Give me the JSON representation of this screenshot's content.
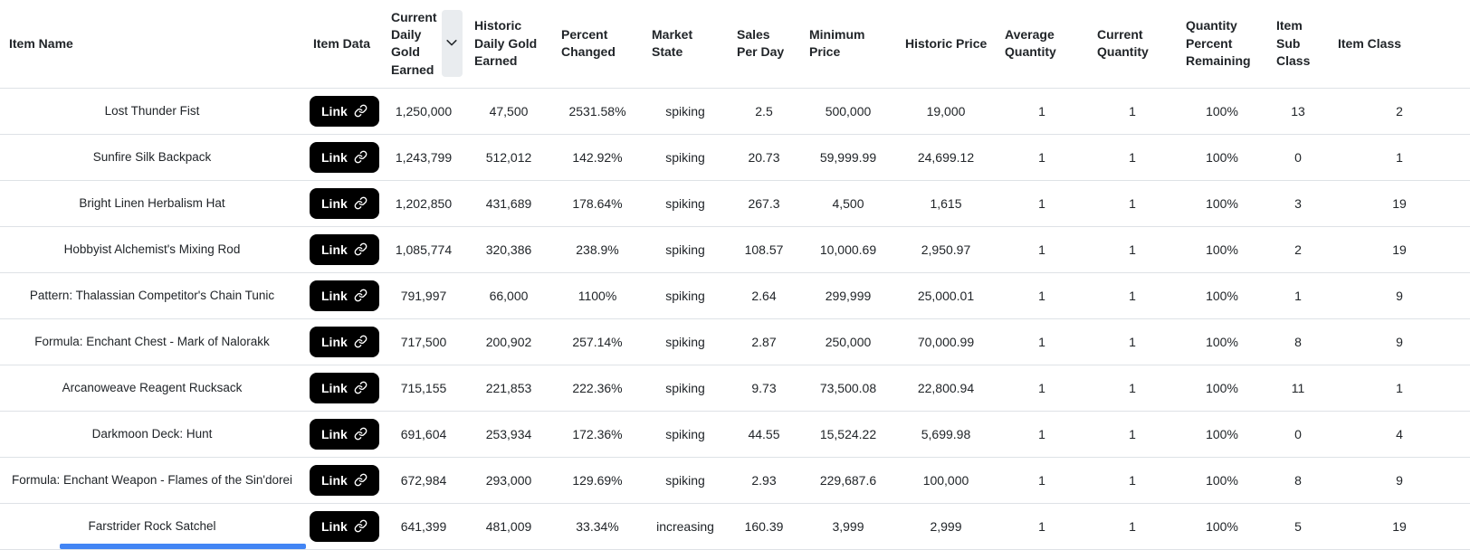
{
  "table": {
    "columns": [
      "Item Name",
      "Item Data",
      "Current Daily Gold Earned",
      "Historic Daily Gold Earned",
      "Percent Changed",
      "Market State",
      "Sales Per Day",
      "Minimum Price",
      "Historic Price",
      "Average Quantity",
      "Current Quantity",
      "Quantity Percent Remaining",
      "Item Sub Class",
      "Item Class"
    ],
    "link_button_label": "Link",
    "field_order": [
      "current_daily_gold_earned",
      "historic_daily_gold_earned",
      "percent_changed",
      "market_state",
      "sales_per_day",
      "minimum_price",
      "historic_price",
      "average_quantity",
      "current_quantity",
      "quantity_percent_remaining",
      "item_sub_class",
      "item_class"
    ],
    "rows": [
      {
        "name": "Lost Thunder Fist",
        "current_daily_gold_earned": "1,250,000",
        "historic_daily_gold_earned": "47,500",
        "percent_changed": "2531.58%",
        "market_state": "spiking",
        "sales_per_day": "2.5",
        "minimum_price": "500,000",
        "historic_price": "19,000",
        "average_quantity": "1",
        "current_quantity": "1",
        "quantity_percent_remaining": "100%",
        "item_sub_class": "13",
        "item_class": "2"
      },
      {
        "name": "Sunfire Silk Backpack",
        "current_daily_gold_earned": "1,243,799",
        "historic_daily_gold_earned": "512,012",
        "percent_changed": "142.92%",
        "market_state": "spiking",
        "sales_per_day": "20.73",
        "minimum_price": "59,999.99",
        "historic_price": "24,699.12",
        "average_quantity": "1",
        "current_quantity": "1",
        "quantity_percent_remaining": "100%",
        "item_sub_class": "0",
        "item_class": "1"
      },
      {
        "name": "Bright Linen Herbalism Hat",
        "current_daily_gold_earned": "1,202,850",
        "historic_daily_gold_earned": "431,689",
        "percent_changed": "178.64%",
        "market_state": "spiking",
        "sales_per_day": "267.3",
        "minimum_price": "4,500",
        "historic_price": "1,615",
        "average_quantity": "1",
        "current_quantity": "1",
        "quantity_percent_remaining": "100%",
        "item_sub_class": "3",
        "item_class": "19"
      },
      {
        "name": "Hobbyist Alchemist's Mixing Rod",
        "current_daily_gold_earned": "1,085,774",
        "historic_daily_gold_earned": "320,386",
        "percent_changed": "238.9%",
        "market_state": "spiking",
        "sales_per_day": "108.57",
        "minimum_price": "10,000.69",
        "historic_price": "2,950.97",
        "average_quantity": "1",
        "current_quantity": "1",
        "quantity_percent_remaining": "100%",
        "item_sub_class": "2",
        "item_class": "19"
      },
      {
        "name": "Pattern: Thalassian Competitor's Chain Tunic",
        "current_daily_gold_earned": "791,997",
        "historic_daily_gold_earned": "66,000",
        "percent_changed": "1100%",
        "market_state": "spiking",
        "sales_per_day": "2.64",
        "minimum_price": "299,999",
        "historic_price": "25,000.01",
        "average_quantity": "1",
        "current_quantity": "1",
        "quantity_percent_remaining": "100%",
        "item_sub_class": "1",
        "item_class": "9"
      },
      {
        "name": "Formula: Enchant Chest - Mark of Nalorakk",
        "current_daily_gold_earned": "717,500",
        "historic_daily_gold_earned": "200,902",
        "percent_changed": "257.14%",
        "market_state": "spiking",
        "sales_per_day": "2.87",
        "minimum_price": "250,000",
        "historic_price": "70,000.99",
        "average_quantity": "1",
        "current_quantity": "1",
        "quantity_percent_remaining": "100%",
        "item_sub_class": "8",
        "item_class": "9"
      },
      {
        "name": "Arcanoweave Reagent Rucksack",
        "current_daily_gold_earned": "715,155",
        "historic_daily_gold_earned": "221,853",
        "percent_changed": "222.36%",
        "market_state": "spiking",
        "sales_per_day": "9.73",
        "minimum_price": "73,500.08",
        "historic_price": "22,800.94",
        "average_quantity": "1",
        "current_quantity": "1",
        "quantity_percent_remaining": "100%",
        "item_sub_class": "11",
        "item_class": "1"
      },
      {
        "name": "Darkmoon Deck: Hunt",
        "current_daily_gold_earned": "691,604",
        "historic_daily_gold_earned": "253,934",
        "percent_changed": "172.36%",
        "market_state": "spiking",
        "sales_per_day": "44.55",
        "minimum_price": "15,524.22",
        "historic_price": "5,699.98",
        "average_quantity": "1",
        "current_quantity": "1",
        "quantity_percent_remaining": "100%",
        "item_sub_class": "0",
        "item_class": "4"
      },
      {
        "name": "Formula: Enchant Weapon - Flames of the Sin'dorei",
        "current_daily_gold_earned": "672,984",
        "historic_daily_gold_earned": "293,000",
        "percent_changed": "129.69%",
        "market_state": "spiking",
        "sales_per_day": "2.93",
        "minimum_price": "229,687.6",
        "historic_price": "100,000",
        "average_quantity": "1",
        "current_quantity": "1",
        "quantity_percent_remaining": "100%",
        "item_sub_class": "8",
        "item_class": "9"
      },
      {
        "name": "Farstrider Rock Satchel",
        "current_daily_gold_earned": "641,399",
        "historic_daily_gold_earned": "481,009",
        "percent_changed": "33.34%",
        "market_state": "increasing",
        "sales_per_day": "160.39",
        "minimum_price": "3,999",
        "historic_price": "2,999",
        "average_quantity": "1",
        "current_quantity": "1",
        "quantity_percent_remaining": "100%",
        "item_sub_class": "5",
        "item_class": "19"
      }
    ]
  },
  "colors": {
    "text": "#212529",
    "row_border": "#dee2e6",
    "link_button_bg": "#000000",
    "link_button_text": "#ffffff",
    "sort_button_bg": "#e9ecef",
    "scrollbar_thumb": "#4285f4"
  }
}
